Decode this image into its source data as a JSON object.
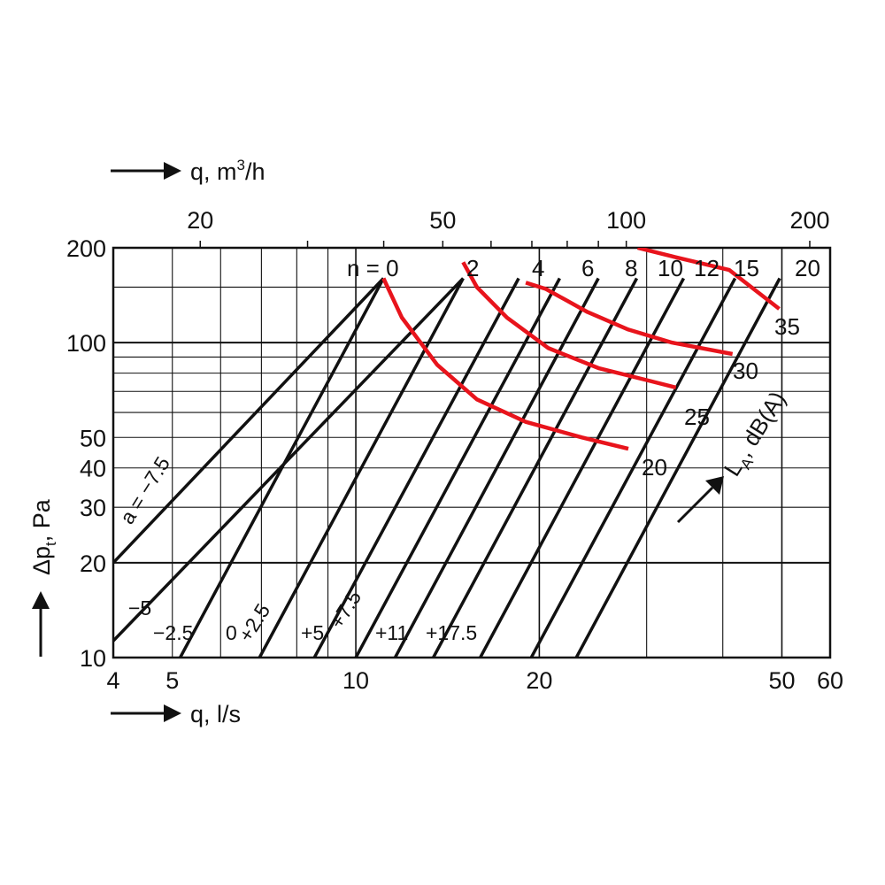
{
  "chart_data": {
    "type": "line",
    "log_x": true,
    "log_y": true,
    "x_bottom": {
      "title": "q, l/s",
      "range": [
        4,
        60
      ],
      "ticks": [
        4,
        5,
        10,
        20,
        50,
        60
      ],
      "tick_labels": [
        "4",
        "5",
        "10",
        "20",
        "50",
        "60"
      ]
    },
    "x_top": {
      "title_prefix": "q, m",
      "title_sup": "3",
      "title_suffix": "/h",
      "ticks": [
        20,
        50,
        100,
        200
      ],
      "tick_labels": [
        "20",
        "50",
        "100",
        "200"
      ]
    },
    "y": {
      "title": "Δp",
      "title_sub": "t",
      "title_suffix": ", Pa",
      "range": [
        10,
        200
      ],
      "ticks": [
        10,
        20,
        30,
        40,
        50,
        100,
        200
      ],
      "tick_labels": [
        "10",
        "20",
        "30",
        "40",
        "50",
        "100",
        "200"
      ]
    },
    "grid": true,
    "lines_label": "n = 0",
    "lines": [
      {
        "name": "0",
        "points": [
          [
            5.15,
            10
          ],
          [
            11.1,
            160
          ]
        ]
      },
      {
        "name": "2",
        "points": [
          [
            6.95,
            10
          ],
          [
            15.0,
            160
          ]
        ]
      },
      {
        "name": "4",
        "points": [
          [
            8.55,
            10
          ],
          [
            18.5,
            160
          ]
        ]
      },
      {
        "name": "6",
        "points": [
          [
            10.0,
            10
          ],
          [
            21.6,
            160
          ]
        ]
      },
      {
        "name": "8",
        "points": [
          [
            11.6,
            10
          ],
          [
            25.0,
            160
          ]
        ]
      },
      {
        "name": "10",
        "points": [
          [
            13.4,
            10
          ],
          [
            28.9,
            160
          ]
        ]
      },
      {
        "name": "12",
        "points": [
          [
            16.0,
            10
          ],
          [
            34.5,
            160
          ]
        ]
      },
      {
        "name": "15",
        "points": [
          [
            19.4,
            10
          ],
          [
            41.9,
            160
          ]
        ]
      },
      {
        "name": "20",
        "points": [
          [
            23.0,
            10
          ],
          [
            49.6,
            160
          ]
        ]
      }
    ],
    "a_lines": [
      {
        "name": "a = −7.5",
        "points": [
          [
            4.0,
            20
          ],
          [
            11.1,
            160
          ]
        ]
      },
      {
        "name": "−5",
        "points": [
          [
            4.0,
            11.3
          ],
          [
            15.0,
            160
          ]
        ]
      }
    ],
    "a_labels": [
      "a = −7.5",
      "−5",
      "−2.5",
      "0",
      "+2.5",
      "+5",
      "+7.5",
      "+11",
      "+17.5"
    ],
    "sound_curves": [
      {
        "name": "20",
        "points": [
          [
            11.1,
            160
          ],
          [
            11.9,
            120
          ],
          [
            13.6,
            85
          ],
          [
            15.8,
            66
          ],
          [
            19.0,
            56
          ],
          [
            23.5,
            50
          ],
          [
            28.0,
            46
          ]
        ]
      },
      {
        "name": "25",
        "points": [
          [
            15.0,
            180
          ],
          [
            15.8,
            150
          ],
          [
            17.7,
            120
          ],
          [
            20.7,
            96
          ],
          [
            25.0,
            83
          ],
          [
            30.0,
            76
          ],
          [
            33.5,
            72
          ]
        ]
      },
      {
        "name": "30",
        "points": [
          [
            19.0,
            155
          ],
          [
            20.5,
            148
          ],
          [
            24.0,
            125
          ],
          [
            28.0,
            110
          ],
          [
            33.0,
            100
          ],
          [
            41.5,
            92
          ]
        ]
      },
      {
        "name": "35",
        "points": [
          [
            29.0,
            200
          ],
          [
            33.0,
            188
          ],
          [
            41.0,
            170
          ],
          [
            49.5,
            128
          ]
        ]
      }
    ],
    "sound_axis_label": "L",
    "sound_axis_label_sub": "A",
    "sound_axis_label_suffix": ", dB(A)",
    "colors": {
      "lines": "#111111",
      "grid": "#111111",
      "sound_curves": "#e8141c"
    }
  }
}
